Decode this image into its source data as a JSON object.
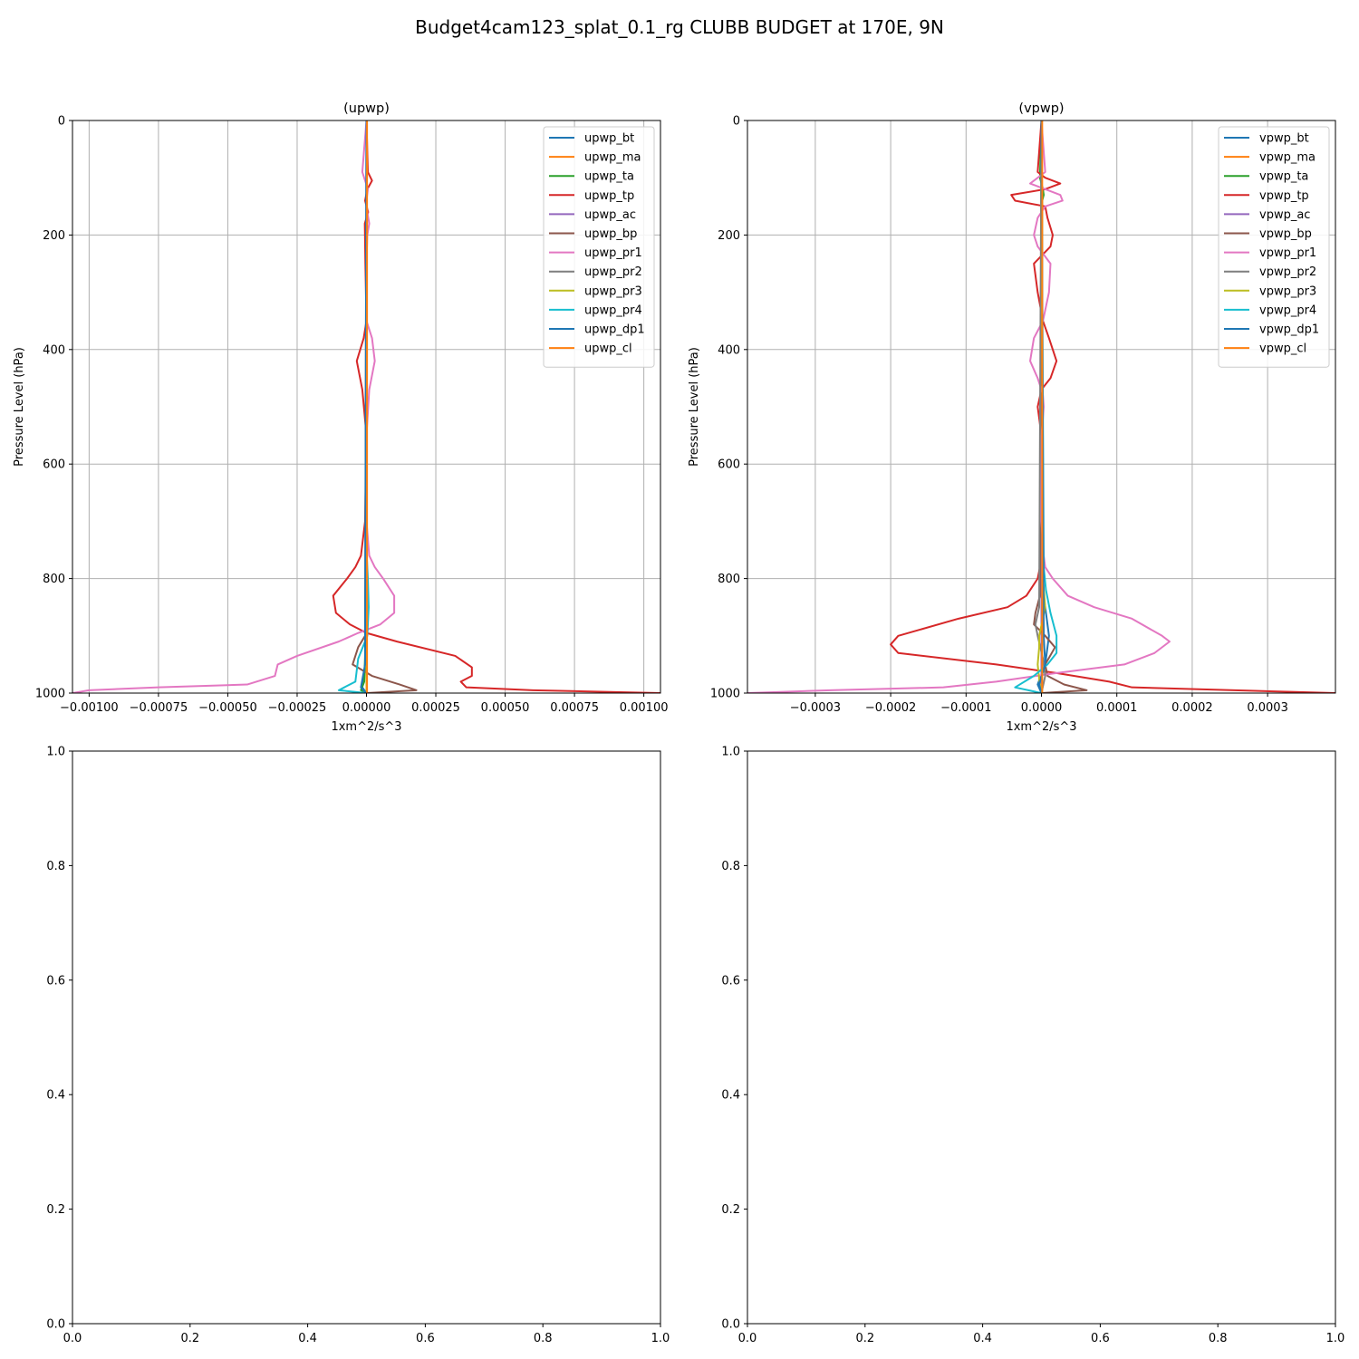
{
  "figure": {
    "title": "Budget4cam123_splat_0.1_rg CLUBB BUDGET at 170E, 9N"
  },
  "colors": {
    "bt": "#1f77b4",
    "ma": "#ff7f0e",
    "ta": "#2ca02c",
    "tp": "#d62728",
    "ac": "#9467bd",
    "bp": "#8c564b",
    "pr1": "#e377c2",
    "pr2": "#7f7f7f",
    "pr3": "#bcbd22",
    "pr4": "#17becf",
    "dp1": "#1f77b4",
    "cl": "#ff7f0e",
    "grid": "#b0b0b0"
  },
  "chart_data": [
    {
      "type": "line",
      "title": "(upwp)",
      "xlabel": "1xm^2/s^3",
      "ylabel": "Pressure Level (hPa)",
      "xlim": [
        -0.00106,
        0.00106
      ],
      "ylim": [
        1000,
        0
      ],
      "grid": true,
      "legend_position": "upper-right",
      "xticks": [
        -0.001,
        -0.00075,
        -0.0005,
        -0.00025,
        0.0,
        0.00025,
        0.0005,
        0.00075,
        0.001
      ],
      "xtick_labels": [
        "−0.00100",
        "−0.00075",
        "−0.00050",
        "−0.00025",
        "0.00000",
        "0.00025",
        "0.00050",
        "0.00075",
        "0.00100"
      ],
      "yticks": [
        0,
        200,
        400,
        600,
        800,
        1000
      ],
      "ytick_labels": [
        "0",
        "200",
        "400",
        "600",
        "800",
        "1000"
      ],
      "series": [
        {
          "name": "upwp_bt",
          "color": "#1f77b4",
          "p": [
            0,
            800,
            900,
            950,
            990,
            1000
          ],
          "x": [
            0,
            0,
            0,
            -5e-06,
            -1.5e-05,
            0
          ]
        },
        {
          "name": "upwp_ma",
          "color": "#ff7f0e",
          "p": [
            0,
            500,
            900,
            1000
          ],
          "x": [
            0,
            0,
            0,
            0
          ]
        },
        {
          "name": "upwp_ta",
          "color": "#2ca02c",
          "p": [
            0,
            780,
            830,
            880,
            920,
            950,
            980,
            995,
            1000
          ],
          "x": [
            0,
            0,
            -5e-06,
            -5e-06,
            -4e-06,
            -6e-06,
            -8e-06,
            -2e-05,
            0
          ]
        },
        {
          "name": "upwp_tp",
          "color": "#d62728",
          "p": [
            0,
            90,
            105,
            120,
            140,
            160,
            180,
            250,
            350,
            380,
            420,
            470,
            550,
            700,
            760,
            780,
            800,
            830,
            860,
            880,
            895,
            910,
            935,
            955,
            970,
            980,
            990,
            995,
            1000
          ],
          "x": [
            0,
            5e-06,
            2e-05,
            3e-06,
            -5e-06,
            6e-06,
            -6e-06,
            -4e-06,
            0,
            -1e-05,
            -3.5e-05,
            -1.5e-05,
            0,
            -5e-06,
            -2e-05,
            -4e-05,
            -7e-05,
            -0.00012,
            -0.00011,
            -6e-05,
            0,
            0.00011,
            0.00032,
            0.00038,
            0.00038,
            0.00034,
            0.00036,
            0.0006,
            0.00106
          ]
        },
        {
          "name": "upwp_ac",
          "color": "#9467bd",
          "p": [
            0,
            500,
            1000
          ],
          "x": [
            0,
            0,
            0
          ]
        },
        {
          "name": "upwp_bp",
          "color": "#8c564b",
          "p": [
            0,
            900,
            920,
            950,
            970,
            985,
            995,
            1000
          ],
          "x": [
            0,
            -5e-06,
            -3e-05,
            -5e-05,
            2e-05,
            0.00012,
            0.00018,
            0
          ]
        },
        {
          "name": "upwp_pr1",
          "color": "#e377c2",
          "p": [
            0,
            90,
            105,
            120,
            140,
            160,
            180,
            200,
            250,
            350,
            380,
            420,
            470,
            550,
            700,
            760,
            780,
            800,
            830,
            860,
            880,
            895,
            910,
            935,
            950,
            970,
            985,
            990,
            995,
            1000
          ],
          "x": [
            0,
            -1.5e-05,
            -5e-06,
            5e-06,
            0,
            3e-06,
            1e-05,
            3e-06,
            0,
            0,
            2e-05,
            3e-05,
            1e-05,
            0,
            0,
            1e-05,
            3e-05,
            6e-05,
            0.0001,
            0.0001,
            5e-05,
            -3e-05,
            -0.0001,
            -0.00025,
            -0.00032,
            -0.00033,
            -0.00043,
            -0.00075,
            -0.001,
            -0.00106
          ]
        },
        {
          "name": "upwp_pr2",
          "color": "#7f7f7f",
          "p": [
            0,
            500,
            1000
          ],
          "x": [
            0,
            0,
            0
          ]
        },
        {
          "name": "upwp_pr3",
          "color": "#bcbd22",
          "p": [
            0,
            500,
            1000
          ],
          "x": [
            0,
            0,
            0
          ]
        },
        {
          "name": "upwp_pr4",
          "color": "#17becf",
          "p": [
            0,
            750,
            800,
            850,
            900,
            940,
            980,
            990,
            995,
            1000
          ],
          "x": [
            0,
            0,
            5e-06,
            8e-06,
            3e-06,
            -3e-05,
            -4e-05,
            -8e-05,
            -0.0001,
            0
          ]
        },
        {
          "name": "upwp_dp1",
          "color": "#1f77b4",
          "p": [
            0,
            950,
            990,
            1000
          ],
          "x": [
            0,
            -5e-06,
            -2e-05,
            0
          ]
        },
        {
          "name": "upwp_cl",
          "color": "#ff7f0e",
          "p": [
            0,
            500,
            1000
          ],
          "x": [
            2e-06,
            2e-06,
            2e-06
          ]
        }
      ]
    },
    {
      "type": "line",
      "title": "(vpwp)",
      "xlabel": "1xm^2/s^3",
      "ylabel": "Pressure Level (hPa)",
      "xlim": [
        -0.00039,
        0.00039
      ],
      "ylim": [
        1000,
        0
      ],
      "grid": true,
      "legend_position": "upper-right",
      "xticks": [
        -0.0003,
        -0.0002,
        -0.0001,
        0.0,
        0.0001,
        0.0002,
        0.0003
      ],
      "xtick_labels": [
        "−0.0003",
        "−0.0002",
        "−0.0001",
        "0.0000",
        "0.0001",
        "0.0002",
        "0.0003"
      ],
      "yticks": [
        0,
        200,
        400,
        600,
        800,
        1000
      ],
      "ytick_labels": [
        "0",
        "200",
        "400",
        "600",
        "800",
        "1000"
      ],
      "series": [
        {
          "name": "vpwp_bt",
          "color": "#1f77b4",
          "p": [
            0,
            800,
            900,
            950,
            985,
            1000
          ],
          "x": [
            0,
            0,
            1e-05,
            5e-06,
            -5e-06,
            0
          ]
        },
        {
          "name": "vpwp_ma",
          "color": "#ff7f0e",
          "p": [
            0,
            500,
            1000
          ],
          "x": [
            0,
            0,
            0
          ]
        },
        {
          "name": "vpwp_ta",
          "color": "#2ca02c",
          "p": [
            0,
            100,
            120,
            130,
            140,
            1000
          ],
          "x": [
            0,
            -2e-06,
            2e-06,
            3e-06,
            1e-06,
            0
          ]
        },
        {
          "name": "vpwp_tp",
          "color": "#d62728",
          "p": [
            0,
            90,
            100,
            110,
            120,
            130,
            140,
            150,
            170,
            200,
            220,
            250,
            300,
            350,
            380,
            420,
            450,
            470,
            500,
            520,
            550,
            700,
            780,
            800,
            830,
            850,
            870,
            900,
            915,
            930,
            950,
            965,
            980,
            990,
            1000
          ],
          "x": [
            0,
            -5e-06,
            5e-06,
            2.5e-05,
            5e-06,
            -4e-05,
            -3.5e-05,
            5e-06,
            8e-06,
            1.5e-05,
            1.2e-05,
            -1e-05,
            -5e-06,
            2e-06,
            1e-05,
            2e-05,
            1.2e-05,
            0,
            -5e-06,
            -3e-06,
            0,
            0,
            -2e-06,
            -5e-06,
            -2e-05,
            -4.5e-05,
            -0.00011,
            -0.00019,
            -0.0002,
            -0.00019,
            -6e-05,
            2e-05,
            9e-05,
            0.00012,
            0.00039
          ]
        },
        {
          "name": "vpwp_ac",
          "color": "#9467bd",
          "p": [
            0,
            500,
            1000
          ],
          "x": [
            0,
            0,
            0
          ]
        },
        {
          "name": "vpwp_bp",
          "color": "#8c564b",
          "p": [
            0,
            830,
            860,
            880,
            900,
            920,
            950,
            970,
            985,
            995,
            1000
          ],
          "x": [
            0,
            -2e-06,
            -8e-06,
            -1e-05,
            5e-06,
            1.8e-05,
            5e-06,
            8e-06,
            3e-05,
            6e-05,
            0
          ]
        },
        {
          "name": "vpwp_pr1",
          "color": "#e377c2",
          "p": [
            0,
            90,
            100,
            110,
            120,
            130,
            140,
            150,
            170,
            200,
            220,
            250,
            300,
            350,
            380,
            420,
            450,
            470,
            480,
            500,
            520,
            550,
            700,
            760,
            780,
            800,
            830,
            850,
            870,
            900,
            910,
            930,
            950,
            965,
            980,
            990,
            995,
            1000
          ],
          "x": [
            0,
            5e-06,
            -5e-06,
            -1.5e-05,
            5e-06,
            2.5e-05,
            2.8e-05,
            5e-06,
            -5e-06,
            -1e-05,
            -5e-06,
            1.2e-05,
            1e-05,
            2e-06,
            -1e-05,
            -1.5e-05,
            -5e-06,
            0,
            2e-06,
            3e-06,
            2e-06,
            0,
            0,
            3e-06,
            5e-06,
            1.5e-05,
            3.5e-05,
            7e-05,
            0.00012,
            0.00016,
            0.00017,
            0.00015,
            0.00011,
            2e-05,
            -6e-05,
            -0.00013,
            -0.00028,
            -0.00039
          ]
        },
        {
          "name": "vpwp_pr2",
          "color": "#7f7f7f",
          "p": [
            0,
            850,
            880,
            900,
            940,
            970,
            1000
          ],
          "x": [
            0,
            -3e-06,
            -8e-06,
            -5e-06,
            2e-06,
            5e-06,
            0
          ]
        },
        {
          "name": "vpwp_pr3",
          "color": "#bcbd22",
          "p": [
            0,
            800,
            850,
            900,
            920,
            950,
            975,
            1000
          ],
          "x": [
            0,
            2e-06,
            5e-06,
            -3e-06,
            -3e-06,
            -5e-06,
            -3e-06,
            0
          ]
        },
        {
          "name": "vpwp_pr4",
          "color": "#17becf",
          "p": [
            0,
            780,
            820,
            860,
            900,
            930,
            950,
            970,
            990,
            1000
          ],
          "x": [
            0,
            3e-06,
            6e-06,
            1.2e-05,
            2e-05,
            2e-05,
            8e-06,
            -1e-05,
            -3.5e-05,
            0
          ]
        },
        {
          "name": "vpwp_dp1",
          "color": "#1f77b4",
          "p": [
            0,
            900,
            950,
            985,
            1000
          ],
          "x": [
            0,
            3e-06,
            5e-06,
            -3e-06,
            0
          ]
        },
        {
          "name": "vpwp_cl",
          "color": "#ff7f0e",
          "p": [
            0,
            500,
            1000
          ],
          "x": [
            1e-06,
            1e-06,
            1e-06
          ]
        }
      ]
    },
    {
      "type": "line",
      "title": "",
      "xlabel": "",
      "ylabel": "",
      "xlim": [
        0,
        1
      ],
      "ylim": [
        0,
        1
      ],
      "grid": false,
      "xticks": [
        0,
        0.2,
        0.4,
        0.6,
        0.8,
        1.0
      ],
      "xtick_labels": [
        "0.0",
        "0.2",
        "0.4",
        "0.6",
        "0.8",
        "1.0"
      ],
      "yticks": [
        0,
        0.2,
        0.4,
        0.6,
        0.8,
        1.0
      ],
      "ytick_labels": [
        "0.0",
        "0.2",
        "0.4",
        "0.6",
        "0.8",
        "1.0"
      ],
      "series": []
    },
    {
      "type": "line",
      "title": "",
      "xlabel": "",
      "ylabel": "",
      "xlim": [
        0,
        1
      ],
      "ylim": [
        0,
        1
      ],
      "grid": false,
      "xticks": [
        0,
        0.2,
        0.4,
        0.6,
        0.8,
        1.0
      ],
      "xtick_labels": [
        "0.0",
        "0.2",
        "0.4",
        "0.6",
        "0.8",
        "1.0"
      ],
      "yticks": [
        0,
        0.2,
        0.4,
        0.6,
        0.8,
        1.0
      ],
      "ytick_labels": [
        "0.0",
        "0.2",
        "0.4",
        "0.6",
        "0.8",
        "1.0"
      ],
      "series": []
    }
  ]
}
